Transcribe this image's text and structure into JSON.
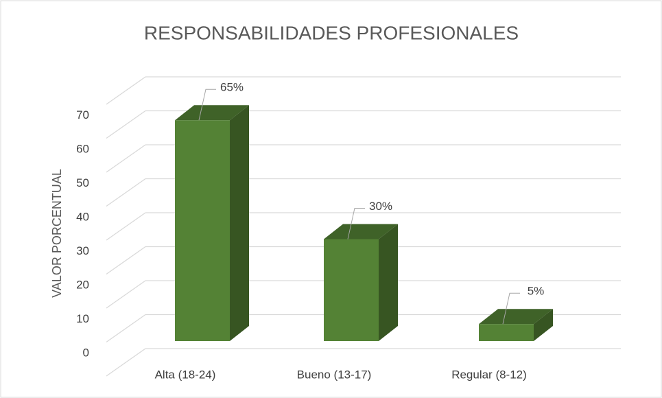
{
  "chart_data": {
    "type": "bar3d",
    "title": "RESPONSABILIDADES PROFESIONALES",
    "y_label": "VALOR PORCENTUAL",
    "categories": [
      "Alta (18-24)",
      "Bueno (13-17)",
      "Regular  (8-12)"
    ],
    "values": [
      65,
      30,
      5
    ],
    "value_labels": [
      "65%",
      "30%",
      "5%"
    ],
    "color": "#548235",
    "ylim": [
      0,
      80
    ],
    "yticks": [
      0,
      10,
      20,
      30,
      40,
      50,
      60,
      70
    ],
    "grid": true
  }
}
